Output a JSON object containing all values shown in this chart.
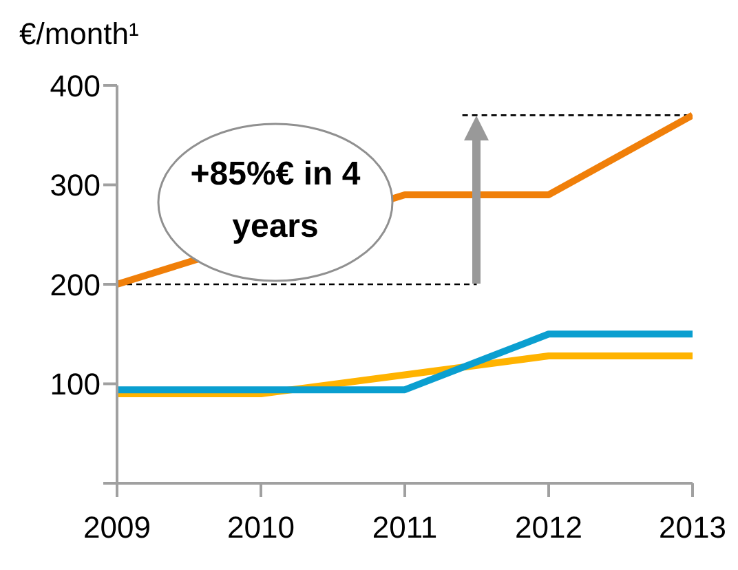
{
  "chart_data": {
    "type": "line",
    "ylabel": "€/month¹",
    "categories": [
      "2009",
      "2010",
      "2011",
      "2012",
      "2013"
    ],
    "series": [
      {
        "color": "#f07f09",
        "values": [
          200,
          null,
          290,
          290,
          370
        ]
      },
      {
        "color": "#ffb300",
        "values": [
          90,
          90,
          109,
          128,
          128
        ]
      },
      {
        "color": "#0a9fd0",
        "values": [
          94,
          94,
          94,
          150,
          150
        ]
      }
    ],
    "ylim": [
      0,
      400
    ],
    "yticks": [
      {
        "value": 0,
        "label": null
      },
      100,
      200,
      300,
      400
    ],
    "grid": false,
    "legend": false,
    "marker": "none",
    "line_style": "solid",
    "ref_lines": [
      {
        "axis": "y",
        "value": 200,
        "line_style": "dashed",
        "color": "#000000"
      },
      {
        "axis": "y",
        "value": 370,
        "line_style": "dashed",
        "color": "#000000"
      }
    ],
    "annotations": [
      "+85%€ in 4 years"
    ]
  }
}
